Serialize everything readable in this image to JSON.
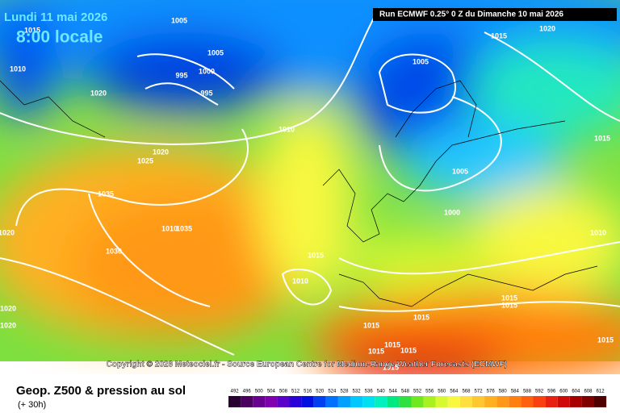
{
  "header": {
    "date": "Lundi 11 mai 2026",
    "time": "8:00 locale",
    "run": "Run ECMWF 0.25° 0 Z du Dimanche 10 mai 2026"
  },
  "isobars": [
    1005,
    1015,
    1020,
    1015,
    1010,
    1005,
    995,
    1000,
    995,
    1005,
    1020,
    1010,
    1015,
    1020,
    1025,
    1005,
    1035,
    1000,
    1010,
    1035,
    1010,
    1030,
    1015,
    1010,
    1020,
    1015,
    1015,
    1020,
    1015,
    1015,
    1020,
    1015,
    1015,
    1015,
    1015,
    1015
  ],
  "copyright": "Copyright © 2026 Meteociel.fr - Source European Centre for Medium-Range Weather Forecasts (ECMWF)",
  "footer": {
    "title": "Geop. Z500 & pression au sol",
    "lead": "(+ 30h)"
  },
  "scale": {
    "values": [
      492,
      496,
      500,
      504,
      508,
      512,
      516,
      520,
      524,
      528,
      532,
      536,
      540,
      544,
      548,
      552,
      556,
      560,
      564,
      568,
      572,
      576,
      580,
      584,
      588,
      592,
      596,
      600,
      604,
      608,
      612
    ],
    "colors": [
      "#2a0030",
      "#4b0060",
      "#6a0090",
      "#8000b0",
      "#5a00c8",
      "#2800d8",
      "#0010e0",
      "#0040f0",
      "#0070ff",
      "#00a0ff",
      "#00c8ff",
      "#00e0f0",
      "#00f0c0",
      "#00e880",
      "#30e040",
      "#70e820",
      "#a8f020",
      "#d8f830",
      "#f8f840",
      "#ffe040",
      "#ffc830",
      "#ffb020",
      "#ff9818",
      "#ff8010",
      "#ff6010",
      "#f84010",
      "#e82010",
      "#d00808",
      "#a80000",
      "#800000",
      "#500000"
    ]
  }
}
